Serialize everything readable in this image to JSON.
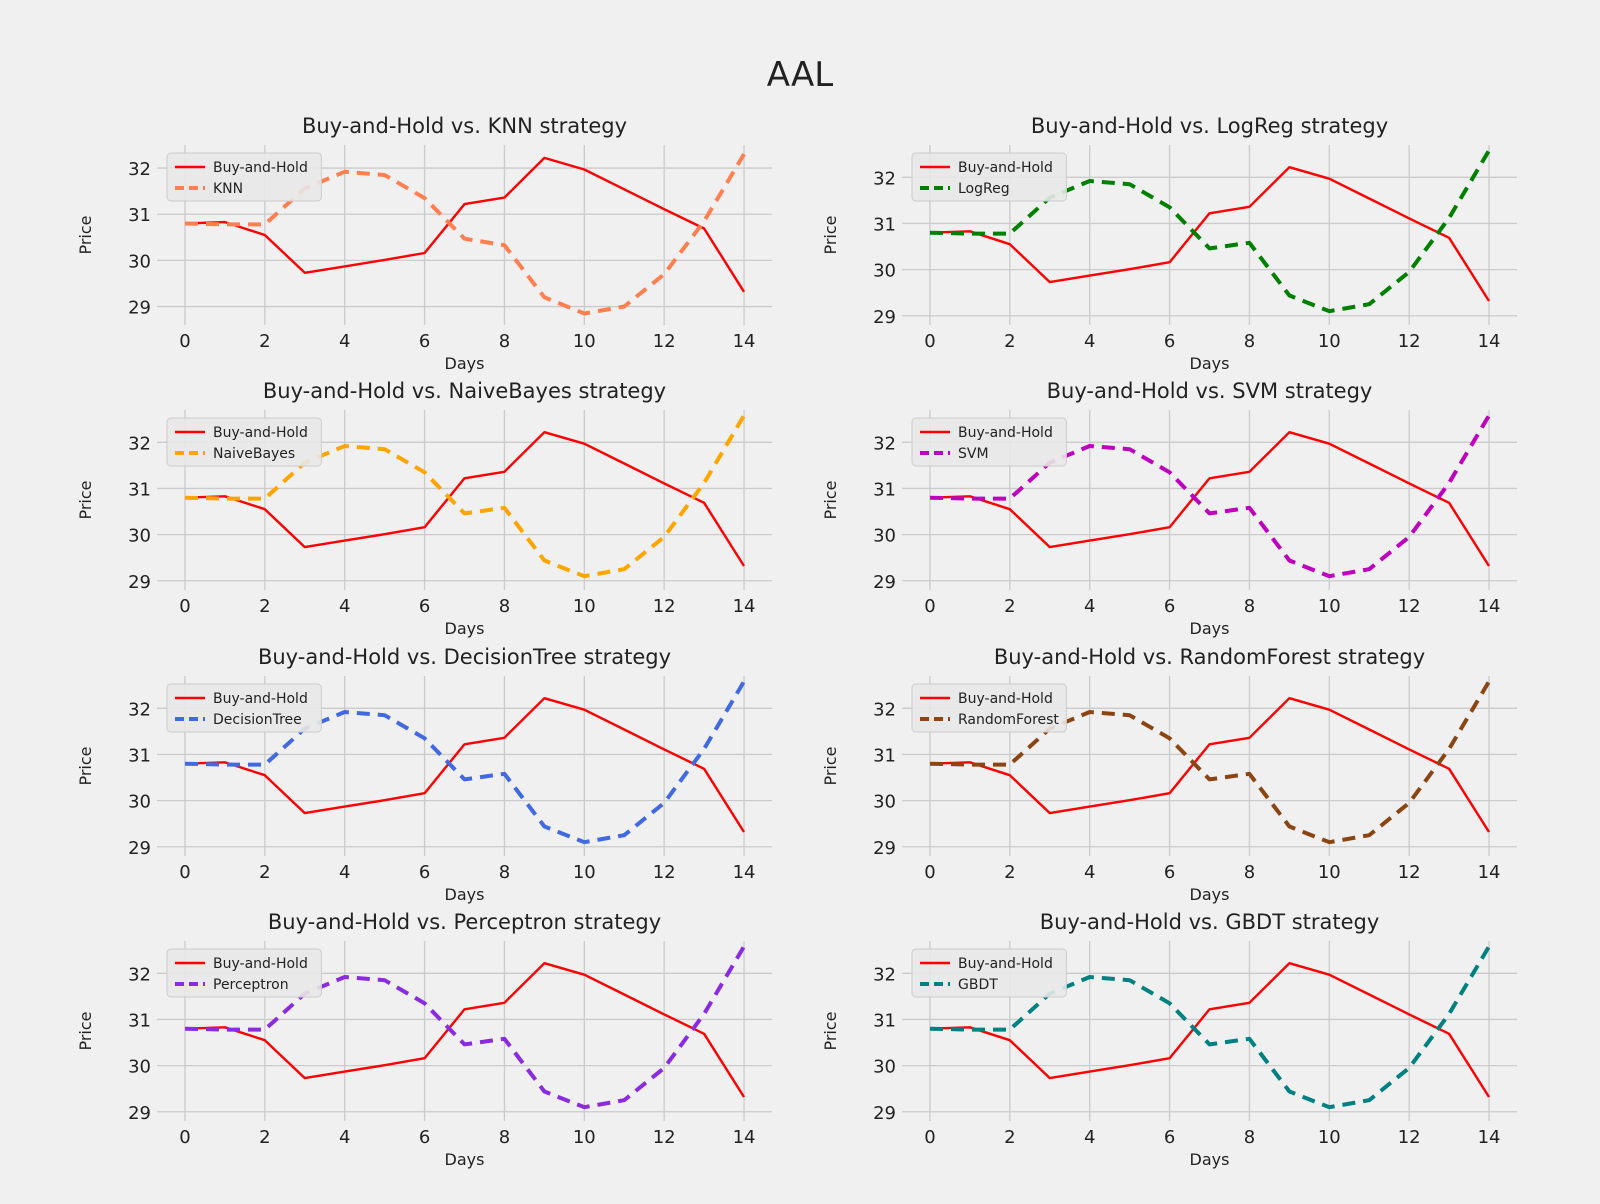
{
  "figure": {
    "title": "AAL"
  },
  "style": {
    "background": "#f0f0f0",
    "grid_color": "#cbcbcb",
    "text_color": "#222222",
    "legend_bg": "#e8e8e8",
    "legend_border": "#cccccc"
  },
  "chart_data": [
    {
      "type": "line",
      "title": "Buy-and-Hold vs. KNN strategy",
      "xlabel": "Days",
      "ylabel": "Price",
      "xlim": [
        -0.7,
        14.7
      ],
      "ylim": [
        28.6,
        32.5
      ],
      "xticks": [
        0,
        2,
        4,
        6,
        8,
        10,
        12,
        14
      ],
      "yticks": [
        29,
        30,
        31,
        32
      ],
      "grid": true,
      "legend": "upper-left",
      "x": [
        0,
        1,
        2,
        3,
        4,
        5,
        6,
        7,
        8,
        9,
        10,
        11,
        12,
        13,
        14
      ],
      "series": [
        {
          "name": "Buy-and-Hold",
          "color": "#ff0000",
          "dash": "solid",
          "values": [
            30.8,
            30.83,
            30.55,
            29.73,
            29.87,
            30.01,
            30.16,
            31.22,
            31.36,
            32.22,
            31.97,
            31.54,
            31.11,
            30.69,
            29.32
          ]
        },
        {
          "name": "KNN",
          "color": "#ff7f50",
          "dash": "dashed",
          "values": [
            30.8,
            30.78,
            30.78,
            31.56,
            31.92,
            31.85,
            31.35,
            30.47,
            30.33,
            29.2,
            28.85,
            29.0,
            29.7,
            30.85,
            32.3
          ]
        }
      ]
    },
    {
      "type": "line",
      "title": "Buy-and-Hold vs. LogReg strategy",
      "xlabel": "Days",
      "ylabel": "Price",
      "xlim": [
        -0.7,
        14.7
      ],
      "ylim": [
        28.8,
        32.7
      ],
      "xticks": [
        0,
        2,
        4,
        6,
        8,
        10,
        12,
        14
      ],
      "yticks": [
        29,
        30,
        31,
        32
      ],
      "grid": true,
      "legend": "upper-left",
      "x": [
        0,
        1,
        2,
        3,
        4,
        5,
        6,
        7,
        8,
        9,
        10,
        11,
        12,
        13,
        14
      ],
      "series": [
        {
          "name": "Buy-and-Hold",
          "color": "#ff0000",
          "dash": "solid",
          "values": [
            30.8,
            30.83,
            30.55,
            29.73,
            29.87,
            30.01,
            30.16,
            31.22,
            31.36,
            32.22,
            31.97,
            31.54,
            31.11,
            30.69,
            29.32
          ]
        },
        {
          "name": "LogReg",
          "color": "#008000",
          "dash": "dashed",
          "values": [
            30.8,
            30.78,
            30.78,
            31.56,
            31.92,
            31.85,
            31.35,
            30.46,
            30.58,
            29.44,
            29.1,
            29.25,
            29.95,
            31.12,
            32.58
          ]
        }
      ]
    },
    {
      "type": "line",
      "title": "Buy-and-Hold vs. NaiveBayes strategy",
      "xlabel": "Days",
      "ylabel": "Price",
      "xlim": [
        -0.7,
        14.7
      ],
      "ylim": [
        28.8,
        32.7
      ],
      "xticks": [
        0,
        2,
        4,
        6,
        8,
        10,
        12,
        14
      ],
      "yticks": [
        29,
        30,
        31,
        32
      ],
      "grid": true,
      "legend": "upper-left",
      "x": [
        0,
        1,
        2,
        3,
        4,
        5,
        6,
        7,
        8,
        9,
        10,
        11,
        12,
        13,
        14
      ],
      "series": [
        {
          "name": "Buy-and-Hold",
          "color": "#ff0000",
          "dash": "solid",
          "values": [
            30.8,
            30.83,
            30.55,
            29.73,
            29.87,
            30.01,
            30.16,
            31.22,
            31.36,
            32.22,
            31.97,
            31.54,
            31.11,
            30.69,
            29.32
          ]
        },
        {
          "name": "NaiveBayes",
          "color": "#ffa500",
          "dash": "dashed",
          "values": [
            30.8,
            30.78,
            30.78,
            31.56,
            31.92,
            31.85,
            31.35,
            30.46,
            30.58,
            29.44,
            29.1,
            29.25,
            29.95,
            31.12,
            32.58
          ]
        }
      ]
    },
    {
      "type": "line",
      "title": "Buy-and-Hold vs. SVM strategy",
      "xlabel": "Days",
      "ylabel": "Price",
      "xlim": [
        -0.7,
        14.7
      ],
      "ylim": [
        28.8,
        32.7
      ],
      "xticks": [
        0,
        2,
        4,
        6,
        8,
        10,
        12,
        14
      ],
      "yticks": [
        29,
        30,
        31,
        32
      ],
      "grid": true,
      "legend": "upper-left",
      "x": [
        0,
        1,
        2,
        3,
        4,
        5,
        6,
        7,
        8,
        9,
        10,
        11,
        12,
        13,
        14
      ],
      "series": [
        {
          "name": "Buy-and-Hold",
          "color": "#ff0000",
          "dash": "solid",
          "values": [
            30.8,
            30.83,
            30.55,
            29.73,
            29.87,
            30.01,
            30.16,
            31.22,
            31.36,
            32.22,
            31.97,
            31.54,
            31.11,
            30.69,
            29.32
          ]
        },
        {
          "name": "SVM",
          "color": "#bf00bf",
          "dash": "dashed",
          "values": [
            30.8,
            30.78,
            30.78,
            31.56,
            31.92,
            31.85,
            31.35,
            30.46,
            30.58,
            29.44,
            29.1,
            29.25,
            29.95,
            31.12,
            32.58
          ]
        }
      ]
    },
    {
      "type": "line",
      "title": "Buy-and-Hold vs. DecisionTree strategy",
      "xlabel": "Days",
      "ylabel": "Price",
      "xlim": [
        -0.7,
        14.7
      ],
      "ylim": [
        28.8,
        32.7
      ],
      "xticks": [
        0,
        2,
        4,
        6,
        8,
        10,
        12,
        14
      ],
      "yticks": [
        29,
        30,
        31,
        32
      ],
      "grid": true,
      "legend": "upper-left",
      "x": [
        0,
        1,
        2,
        3,
        4,
        5,
        6,
        7,
        8,
        9,
        10,
        11,
        12,
        13,
        14
      ],
      "series": [
        {
          "name": "Buy-and-Hold",
          "color": "#ff0000",
          "dash": "solid",
          "values": [
            30.8,
            30.83,
            30.55,
            29.73,
            29.87,
            30.01,
            30.16,
            31.22,
            31.36,
            32.22,
            31.97,
            31.54,
            31.11,
            30.69,
            29.32
          ]
        },
        {
          "name": "DecisionTree",
          "color": "#4169e1",
          "dash": "dashed",
          "values": [
            30.8,
            30.78,
            30.78,
            31.56,
            31.92,
            31.85,
            31.35,
            30.46,
            30.58,
            29.44,
            29.1,
            29.25,
            29.95,
            31.12,
            32.58
          ]
        }
      ]
    },
    {
      "type": "line",
      "title": "Buy-and-Hold vs. RandomForest strategy",
      "xlabel": "Days",
      "ylabel": "Price",
      "xlim": [
        -0.7,
        14.7
      ],
      "ylim": [
        28.8,
        32.7
      ],
      "xticks": [
        0,
        2,
        4,
        6,
        8,
        10,
        12,
        14
      ],
      "yticks": [
        29,
        30,
        31,
        32
      ],
      "grid": true,
      "legend": "upper-left",
      "x": [
        0,
        1,
        2,
        3,
        4,
        5,
        6,
        7,
        8,
        9,
        10,
        11,
        12,
        13,
        14
      ],
      "series": [
        {
          "name": "Buy-and-Hold",
          "color": "#ff0000",
          "dash": "solid",
          "values": [
            30.8,
            30.83,
            30.55,
            29.73,
            29.87,
            30.01,
            30.16,
            31.22,
            31.36,
            32.22,
            31.97,
            31.54,
            31.11,
            30.69,
            29.32
          ]
        },
        {
          "name": "RandomForest",
          "color": "#8b4513",
          "dash": "dashed",
          "values": [
            30.8,
            30.78,
            30.78,
            31.56,
            31.92,
            31.85,
            31.35,
            30.46,
            30.58,
            29.44,
            29.1,
            29.25,
            29.95,
            31.12,
            32.58
          ]
        }
      ]
    },
    {
      "type": "line",
      "title": "Buy-and-Hold vs. Perceptron strategy",
      "xlabel": "Days",
      "ylabel": "Price",
      "xlim": [
        -0.7,
        14.7
      ],
      "ylim": [
        28.8,
        32.7
      ],
      "xticks": [
        0,
        2,
        4,
        6,
        8,
        10,
        12,
        14
      ],
      "yticks": [
        29,
        30,
        31,
        32
      ],
      "grid": true,
      "legend": "upper-left",
      "x": [
        0,
        1,
        2,
        3,
        4,
        5,
        6,
        7,
        8,
        9,
        10,
        11,
        12,
        13,
        14
      ],
      "series": [
        {
          "name": "Buy-and-Hold",
          "color": "#ff0000",
          "dash": "solid",
          "values": [
            30.8,
            30.83,
            30.55,
            29.73,
            29.87,
            30.01,
            30.16,
            31.22,
            31.36,
            32.22,
            31.97,
            31.54,
            31.11,
            30.69,
            29.32
          ]
        },
        {
          "name": "Perceptron",
          "color": "#8a2be2",
          "dash": "dashed",
          "values": [
            30.8,
            30.78,
            30.78,
            31.56,
            31.92,
            31.85,
            31.35,
            30.46,
            30.58,
            29.44,
            29.1,
            29.25,
            29.95,
            31.12,
            32.58
          ]
        }
      ]
    },
    {
      "type": "line",
      "title": "Buy-and-Hold vs. GBDT strategy",
      "xlabel": "Days",
      "ylabel": "Price",
      "xlim": [
        -0.7,
        14.7
      ],
      "ylim": [
        28.8,
        32.7
      ],
      "xticks": [
        0,
        2,
        4,
        6,
        8,
        10,
        12,
        14
      ],
      "yticks": [
        29,
        30,
        31,
        32
      ],
      "grid": true,
      "legend": "upper-left",
      "x": [
        0,
        1,
        2,
        3,
        4,
        5,
        6,
        7,
        8,
        9,
        10,
        11,
        12,
        13,
        14
      ],
      "series": [
        {
          "name": "Buy-and-Hold",
          "color": "#ff0000",
          "dash": "solid",
          "values": [
            30.8,
            30.83,
            30.55,
            29.73,
            29.87,
            30.01,
            30.16,
            31.22,
            31.36,
            32.22,
            31.97,
            31.54,
            31.11,
            30.69,
            29.32
          ]
        },
        {
          "name": "GBDT",
          "color": "#008080",
          "dash": "dashed",
          "values": [
            30.8,
            30.78,
            30.78,
            31.56,
            31.92,
            31.85,
            31.35,
            30.46,
            30.58,
            29.44,
            29.1,
            29.25,
            29.95,
            31.12,
            32.58
          ]
        }
      ]
    }
  ]
}
